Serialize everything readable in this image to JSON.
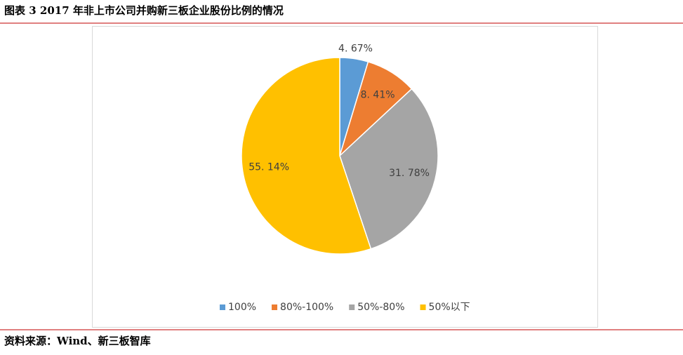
{
  "header": {
    "title": "图表 3   2017 年非上市公司并购新三板企业股份比例的情况"
  },
  "chart_data": {
    "type": "pie",
    "categories": [
      "100%",
      "80%-100%",
      "50%-80%",
      "50%以下"
    ],
    "values": [
      4.67,
      8.41,
      31.78,
      55.14
    ],
    "value_labels": [
      "4. 67%",
      "8. 41%",
      "31. 78%",
      "55. 14%"
    ],
    "colors": [
      "#5b9bd5",
      "#ed7d31",
      "#a5a5a5",
      "#ffc000"
    ],
    "legend": "bottom"
  },
  "footer": {
    "source": "资料来源：Wind、新三板智库"
  }
}
